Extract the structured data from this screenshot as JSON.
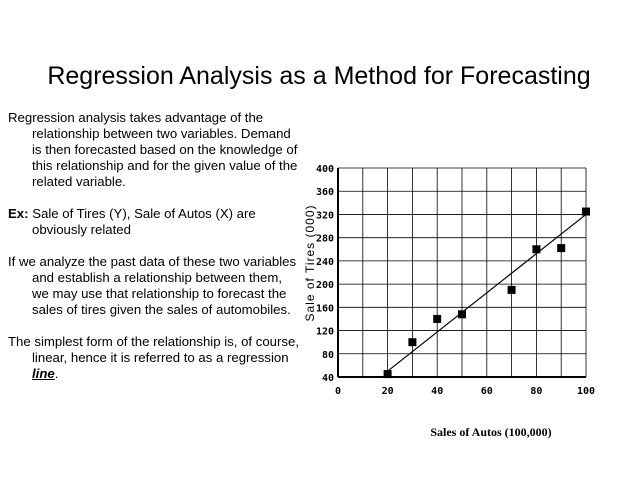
{
  "slide": {
    "title": "Regression Analysis as a Method for Forecasting",
    "paragraphs": [
      {
        "prefix": "",
        "text": "Regression analysis takes advantage of the relationship between two variables.  Demand is then forecasted based on the knowledge of this relationship and for the given value of the related variable."
      },
      {
        "prefix": "Ex:",
        "text": " Sale of Tires (Y), Sale of Autos (X) are obviously related"
      },
      {
        "prefix": "",
        "text": "If we analyze the past data of these two variables and establish a relationship between them, we may use that relationship to forecast the sales of tires given the sales of automobiles."
      },
      {
        "prefix": "",
        "text": "The simplest form of the relationship is, of course, linear, hence it is referred to as a regression ",
        "emph": "line",
        "suffix": "."
      }
    ]
  },
  "chart_data": {
    "type": "scatter",
    "xlabel": "Sales of Autos (100,000)",
    "ylabel": "Sale of Tires (000)",
    "xlim": [
      0,
      100
    ],
    "ylim": [
      40,
      400
    ],
    "xticks": [
      "0",
      "20",
      "40",
      "60",
      "80",
      "100"
    ],
    "yticks": [
      "40",
      "80",
      "120",
      "160",
      "200",
      "240",
      "280",
      "320",
      "360",
      "400"
    ],
    "grid": true,
    "points": [
      {
        "x": 20,
        "y": 45
      },
      {
        "x": 30,
        "y": 100
      },
      {
        "x": 40,
        "y": 140
      },
      {
        "x": 50,
        "y": 148
      },
      {
        "x": 70,
        "y": 190
      },
      {
        "x": 80,
        "y": 260
      },
      {
        "x": 90,
        "y": 262
      },
      {
        "x": 100,
        "y": 325
      }
    ],
    "regression_line": {
      "x1": 20,
      "y1": 50,
      "x2": 100,
      "y2": 320
    }
  }
}
